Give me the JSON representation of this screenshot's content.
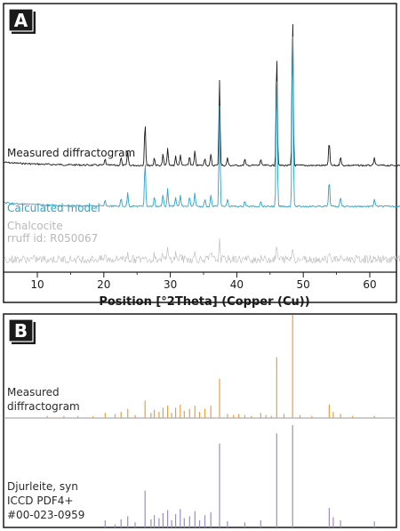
{
  "chart_data": [
    {
      "panel": "A",
      "type": "line",
      "xlabel": "Position [°2Theta] (Copper (Cu))",
      "xlim": [
        5,
        65
      ],
      "xticks": [
        10,
        20,
        30,
        40,
        50,
        60
      ],
      "grid": false,
      "series": [
        {
          "name": "Measured diffractogram",
          "color": "#1a1a1a",
          "baseline": 0.8,
          "peaks": [
            {
              "x": 20.2,
              "h": 0.04
            },
            {
              "x": 22.6,
              "h": 0.05
            },
            {
              "x": 23.6,
              "h": 0.09
            },
            {
              "x": 26.2,
              "h": 0.28
            },
            {
              "x": 27.6,
              "h": 0.05
            },
            {
              "x": 28.9,
              "h": 0.07
            },
            {
              "x": 29.6,
              "h": 0.11
            },
            {
              "x": 30.8,
              "h": 0.06
            },
            {
              "x": 31.5,
              "h": 0.07
            },
            {
              "x": 32.9,
              "h": 0.06
            },
            {
              "x": 33.7,
              "h": 0.09
            },
            {
              "x": 35.2,
              "h": 0.05
            },
            {
              "x": 36.1,
              "h": 0.07
            },
            {
              "x": 37.4,
              "h": 0.55
            },
            {
              "x": 38.6,
              "h": 0.05
            },
            {
              "x": 41.2,
              "h": 0.04
            },
            {
              "x": 43.6,
              "h": 0.04
            },
            {
              "x": 46.0,
              "h": 0.74
            },
            {
              "x": 48.4,
              "h": 1.0
            },
            {
              "x": 53.9,
              "h": 0.16
            },
            {
              "x": 55.6,
              "h": 0.06
            },
            {
              "x": 60.7,
              "h": 0.05
            }
          ]
        },
        {
          "name": "Calculated model",
          "color": "#2ea3c9",
          "baseline": 0.45,
          "peaks": [
            {
              "x": 20.2,
              "h": 0.03
            },
            {
              "x": 22.6,
              "h": 0.04
            },
            {
              "x": 23.6,
              "h": 0.07
            },
            {
              "x": 26.2,
              "h": 0.24
            },
            {
              "x": 27.6,
              "h": 0.05
            },
            {
              "x": 28.9,
              "h": 0.06
            },
            {
              "x": 29.6,
              "h": 0.09
            },
            {
              "x": 30.8,
              "h": 0.05
            },
            {
              "x": 31.5,
              "h": 0.06
            },
            {
              "x": 32.9,
              "h": 0.05
            },
            {
              "x": 33.7,
              "h": 0.07
            },
            {
              "x": 35.2,
              "h": 0.04
            },
            {
              "x": 36.1,
              "h": 0.06
            },
            {
              "x": 37.4,
              "h": 0.52
            },
            {
              "x": 38.6,
              "h": 0.04
            },
            {
              "x": 41.2,
              "h": 0.03
            },
            {
              "x": 43.6,
              "h": 0.03
            },
            {
              "x": 46.0,
              "h": 0.72
            },
            {
              "x": 48.4,
              "h": 0.98
            },
            {
              "x": 53.9,
              "h": 0.14
            },
            {
              "x": 55.6,
              "h": 0.05
            },
            {
              "x": 60.7,
              "h": 0.04
            }
          ]
        },
        {
          "name": "Chalcocite rruff id: R050067",
          "label_lines": [
            "Chalcocite",
            "rruff id: R050067"
          ],
          "color": "#b8b8b8",
          "baseline": 0.25,
          "peaks": [
            {
              "x": 20.2,
              "h": 0.04
            },
            {
              "x": 22.6,
              "h": 0.04
            },
            {
              "x": 23.6,
              "h": 0.06
            },
            {
              "x": 26.2,
              "h": 0.06
            },
            {
              "x": 27.6,
              "h": 0.05
            },
            {
              "x": 28.9,
              "h": 0.06
            },
            {
              "x": 29.6,
              "h": 0.08
            },
            {
              "x": 30.8,
              "h": 0.05
            },
            {
              "x": 31.5,
              "h": 0.06
            },
            {
              "x": 33.7,
              "h": 0.05
            },
            {
              "x": 36.1,
              "h": 0.06
            },
            {
              "x": 37.4,
              "h": 0.15
            },
            {
              "x": 46.0,
              "h": 0.11
            },
            {
              "x": 48.4,
              "h": 0.12
            },
            {
              "x": 53.9,
              "h": 0.08
            }
          ]
        }
      ]
    },
    {
      "panel": "B",
      "type": "bar",
      "xlim": [
        5,
        65
      ],
      "grid": false,
      "series": [
        {
          "name": "Measured diffractogram",
          "label_lines": [
            "Measured",
            "diffractogram"
          ],
          "color": "#e8a044",
          "x": [
            11.5,
            14.0,
            16.1,
            18.4,
            20.2,
            21.7,
            22.6,
            23.6,
            24.7,
            26.2,
            27.1,
            27.6,
            28.3,
            28.9,
            29.6,
            30.2,
            30.8,
            31.5,
            32.1,
            32.9,
            33.7,
            34.4,
            35.2,
            36.1,
            37.4,
            38.6,
            39.5,
            40.3,
            41.2,
            42.2,
            43.6,
            44.4,
            45.2,
            46.0,
            47.1,
            48.4,
            49.5,
            51.3,
            53.9,
            54.5,
            55.6,
            57.4,
            60.7
          ],
          "values": [
            0.02,
            0.02,
            0.02,
            0.02,
            0.05,
            0.04,
            0.06,
            0.09,
            0.03,
            0.17,
            0.05,
            0.08,
            0.06,
            0.1,
            0.12,
            0.05,
            0.1,
            0.13,
            0.07,
            0.09,
            0.12,
            0.06,
            0.09,
            0.12,
            0.38,
            0.04,
            0.03,
            0.04,
            0.03,
            0.02,
            0.05,
            0.03,
            0.02,
            0.59,
            0.04,
            1.0,
            0.03,
            0.02,
            0.13,
            0.06,
            0.04,
            0.02,
            0.02
          ]
        },
        {
          "name": "Djurleite, syn ICCD PDF4+ #00-023-0959",
          "label_lines": [
            "Djurleite, syn",
            "ICCD PDF4+",
            "#00-023-0959"
          ],
          "color": "#9b8ec4",
          "x": [
            20.2,
            21.7,
            22.6,
            23.6,
            24.7,
            26.2,
            27.1,
            27.6,
            28.3,
            28.9,
            29.6,
            30.2,
            30.8,
            31.5,
            32.1,
            32.9,
            33.7,
            34.4,
            35.2,
            36.1,
            37.4,
            38.6,
            41.2,
            43.6,
            46.0,
            48.4,
            53.9,
            54.5,
            55.6,
            60.7
          ],
          "values": [
            0.07,
            0.03,
            0.08,
            0.11,
            0.05,
            0.36,
            0.08,
            0.12,
            0.09,
            0.14,
            0.17,
            0.07,
            0.13,
            0.18,
            0.09,
            0.11,
            0.16,
            0.07,
            0.12,
            0.15,
            0.82,
            0.06,
            0.05,
            0.07,
            0.92,
            1.0,
            0.19,
            0.1,
            0.07,
            0.06
          ]
        }
      ]
    }
  ],
  "panels": {
    "a": {
      "letter": "A"
    },
    "b": {
      "letter": "B"
    }
  }
}
